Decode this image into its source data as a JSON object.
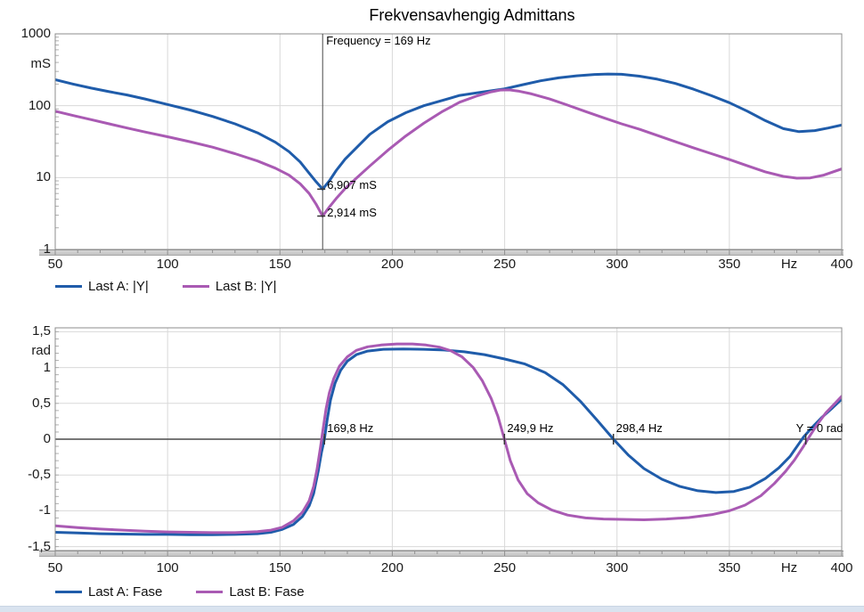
{
  "title": "Frekvensavhengig Admittans",
  "colors": {
    "last_a": "#1f5caa",
    "last_b": "#a95ab3",
    "grid": "#d9d9d9",
    "frame": "#8c8c8c",
    "zero_line": "#4a4a4a",
    "cursor_line": "#4a4a4a",
    "tick": "#8f8f8f"
  },
  "chart_data": [
    {
      "type": "line",
      "name": "admittance-magnitude",
      "x_unit": "Hz",
      "xlim": [
        50,
        400
      ],
      "x_ticks": [
        "50",
        "100",
        "150",
        "200",
        "250",
        "300",
        "350",
        "400"
      ],
      "y_unit": "mS",
      "y_scale": "log",
      "ylim": [
        1,
        1000
      ],
      "y_ticks": [
        "1000",
        "100",
        "10",
        "1"
      ],
      "grid": "on",
      "legend_position": "bottom-left",
      "series": [
        {
          "name": "Last A: |Y|",
          "color": "#1f5caa",
          "points": [
            [
              50,
              230
            ],
            [
              58,
              200
            ],
            [
              66,
              176
            ],
            [
              74,
              157
            ],
            [
              82,
              141
            ],
            [
              90,
              124
            ],
            [
              100,
              104
            ],
            [
              110,
              87
            ],
            [
              120,
              71
            ],
            [
              130,
              56
            ],
            [
              140,
              42
            ],
            [
              148,
              31
            ],
            [
              154,
              23
            ],
            [
              159,
              16.5
            ],
            [
              163,
              11.5
            ],
            [
              166,
              8.8
            ],
            [
              169,
              6.907
            ],
            [
              172,
              9
            ],
            [
              175,
              12.5
            ],
            [
              179,
              18
            ],
            [
              184,
              26
            ],
            [
              190,
              40
            ],
            [
              198,
              60
            ],
            [
              206,
              80
            ],
            [
              214,
              100
            ],
            [
              222,
              118
            ],
            [
              230,
              139
            ],
            [
              240,
              155
            ],
            [
              250,
              172
            ],
            [
              258,
              196
            ],
            [
              266,
              222
            ],
            [
              274,
              244
            ],
            [
              282,
              261
            ],
            [
              290,
              272
            ],
            [
              296,
              276
            ],
            [
              302,
              274
            ],
            [
              310,
              258
            ],
            [
              318,
              234
            ],
            [
              326,
              204
            ],
            [
              334,
              170
            ],
            [
              342,
              138
            ],
            [
              350,
              110
            ],
            [
              358,
              84
            ],
            [
              366,
              62
            ],
            [
              374,
              48
            ],
            [
              381,
              43.5
            ],
            [
              388,
              45
            ],
            [
              394,
              49
            ],
            [
              400,
              54
            ]
          ]
        },
        {
          "name": "Last B: |Y|",
          "color": "#a95ab3",
          "points": [
            [
              50,
              84
            ],
            [
              58,
              73
            ],
            [
              66,
              64
            ],
            [
              74,
              56
            ],
            [
              82,
              49
            ],
            [
              90,
              43
            ],
            [
              100,
              37
            ],
            [
              110,
              31.5
            ],
            [
              120,
              26.5
            ],
            [
              130,
              21.5
            ],
            [
              140,
              17
            ],
            [
              148,
              13.5
            ],
            [
              154,
              10.8
            ],
            [
              159,
              8.2
            ],
            [
              163,
              6
            ],
            [
              166,
              4.3
            ],
            [
              169,
              2.914
            ],
            [
              172,
              3.9
            ],
            [
              175,
              5.1
            ],
            [
              179,
              7
            ],
            [
              184,
              9.8
            ],
            [
              190,
              14.5
            ],
            [
              198,
              24
            ],
            [
              206,
              38
            ],
            [
              214,
              57
            ],
            [
              222,
              82
            ],
            [
              230,
              112
            ],
            [
              238,
              138
            ],
            [
              244,
              156
            ],
            [
              248,
              165
            ],
            [
              252,
              166
            ],
            [
              256,
              160
            ],
            [
              262,
              146
            ],
            [
              270,
              124
            ],
            [
              278,
              102
            ],
            [
              286,
              83
            ],
            [
              294,
              68
            ],
            [
              302,
              56
            ],
            [
              310,
              47
            ],
            [
              318,
              38.5
            ],
            [
              326,
              31.5
            ],
            [
              334,
              26
            ],
            [
              342,
              21.5
            ],
            [
              350,
              17.8
            ],
            [
              358,
              14.6
            ],
            [
              366,
              12
            ],
            [
              374,
              10.4
            ],
            [
              380,
              9.8
            ],
            [
              386,
              9.9
            ],
            [
              392,
              10.8
            ],
            [
              400,
              13.2
            ]
          ]
        }
      ],
      "cursor": {
        "frequency_hz": 169,
        "label": "Frequency = 169 Hz",
        "markers": [
          {
            "value_ms": 6.907,
            "label": "6,907 mS"
          },
          {
            "value_ms": 2.914,
            "label": "2,914 mS"
          }
        ]
      }
    },
    {
      "type": "line",
      "name": "admittance-phase",
      "x_unit": "Hz",
      "xlim": [
        50,
        400
      ],
      "x_ticks": [
        "50",
        "100",
        "150",
        "200",
        "250",
        "300",
        "350",
        "400"
      ],
      "y_unit": "rad",
      "ylim": [
        -1.5,
        1.5
      ],
      "y_ticks": [
        "1,5",
        "1",
        "0,5",
        "0",
        "-0,5",
        "-1",
        "-1,5"
      ],
      "grid": "on",
      "legend_position": "bottom-left",
      "series": [
        {
          "name": "Last A: Fase",
          "color": "#1f5caa",
          "points": [
            [
              50,
              -1.3
            ],
            [
              60,
              -1.31
            ],
            [
              70,
              -1.32
            ],
            [
              80,
              -1.325
            ],
            [
              90,
              -1.33
            ],
            [
              100,
              -1.33
            ],
            [
              110,
              -1.335
            ],
            [
              120,
              -1.335
            ],
            [
              130,
              -1.33
            ],
            [
              140,
              -1.32
            ],
            [
              146,
              -1.3
            ],
            [
              151,
              -1.26
            ],
            [
              156,
              -1.19
            ],
            [
              160,
              -1.08
            ],
            [
              163,
              -0.93
            ],
            [
              165,
              -0.76
            ],
            [
              167,
              -0.45
            ],
            [
              168.5,
              -0.18
            ],
            [
              169.8,
              0
            ],
            [
              171,
              0.27
            ],
            [
              172.5,
              0.55
            ],
            [
              174.5,
              0.78
            ],
            [
              177,
              0.96
            ],
            [
              180,
              1.09
            ],
            [
              184,
              1.18
            ],
            [
              189,
              1.23
            ],
            [
              196,
              1.255
            ],
            [
              205,
              1.26
            ],
            [
              214,
              1.255
            ],
            [
              223,
              1.245
            ],
            [
              232,
              1.22
            ],
            [
              241,
              1.18
            ],
            [
              250,
              1.12
            ],
            [
              259,
              1.05
            ],
            [
              268,
              0.93
            ],
            [
              276,
              0.76
            ],
            [
              284,
              0.52
            ],
            [
              291,
              0.27
            ],
            [
              298.4,
              0
            ],
            [
              305,
              -0.22
            ],
            [
              312,
              -0.41
            ],
            [
              320,
              -0.56
            ],
            [
              328,
              -0.66
            ],
            [
              336,
              -0.72
            ],
            [
              344,
              -0.745
            ],
            [
              352,
              -0.73
            ],
            [
              359,
              -0.67
            ],
            [
              366,
              -0.55
            ],
            [
              372,
              -0.4
            ],
            [
              377,
              -0.24
            ],
            [
              381,
              -0.06
            ],
            [
              383,
              0.03
            ],
            [
              387,
              0.17
            ],
            [
              391,
              0.3
            ],
            [
              396,
              0.44
            ],
            [
              400,
              0.56
            ]
          ]
        },
        {
          "name": "Last B: Fase",
          "color": "#a95ab3",
          "points": [
            [
              50,
              -1.21
            ],
            [
              60,
              -1.235
            ],
            [
              70,
              -1.255
            ],
            [
              80,
              -1.27
            ],
            [
              90,
              -1.285
            ],
            [
              100,
              -1.295
            ],
            [
              110,
              -1.3
            ],
            [
              120,
              -1.305
            ],
            [
              130,
              -1.305
            ],
            [
              140,
              -1.29
            ],
            [
              146,
              -1.27
            ],
            [
              151,
              -1.23
            ],
            [
              156,
              -1.14
            ],
            [
              160,
              -1.02
            ],
            [
              163,
              -0.86
            ],
            [
              165,
              -0.66
            ],
            [
              166.5,
              -0.42
            ],
            [
              168,
              -0.12
            ],
            [
              169,
              0.1
            ],
            [
              170.5,
              0.42
            ],
            [
              172,
              0.65
            ],
            [
              174,
              0.85
            ],
            [
              176.5,
              1.02
            ],
            [
              180,
              1.15
            ],
            [
              184,
              1.24
            ],
            [
              189,
              1.29
            ],
            [
              195,
              1.315
            ],
            [
              202,
              1.33
            ],
            [
              209,
              1.33
            ],
            [
              215,
              1.315
            ],
            [
              221,
              1.285
            ],
            [
              226,
              1.235
            ],
            [
              231,
              1.15
            ],
            [
              236,
              1.0
            ],
            [
              240,
              0.82
            ],
            [
              244,
              0.57
            ],
            [
              247,
              0.32
            ],
            [
              249.9,
              0
            ],
            [
              252.5,
              -0.3
            ],
            [
              256,
              -0.57
            ],
            [
              260,
              -0.76
            ],
            [
              265,
              -0.89
            ],
            [
              271,
              -0.99
            ],
            [
              278,
              -1.06
            ],
            [
              286,
              -1.1
            ],
            [
              294,
              -1.115
            ],
            [
              302,
              -1.12
            ],
            [
              312,
              -1.125
            ],
            [
              322,
              -1.115
            ],
            [
              332,
              -1.095
            ],
            [
              342,
              -1.055
            ],
            [
              350,
              -1.0
            ],
            [
              357,
              -0.92
            ],
            [
              364,
              -0.79
            ],
            [
              370,
              -0.62
            ],
            [
              375,
              -0.45
            ],
            [
              379,
              -0.29
            ],
            [
              383,
              -0.1
            ],
            [
              385.5,
              0.03
            ],
            [
              389,
              0.2
            ],
            [
              393,
              0.37
            ],
            [
              397,
              0.5
            ],
            [
              400,
              0.6
            ]
          ]
        }
      ],
      "zero_crossings": [
        {
          "frequency_hz": 169.8,
          "label": "169,8 Hz"
        },
        {
          "frequency_hz": 249.9,
          "label": "249,9 Hz"
        },
        {
          "frequency_hz": 298.4,
          "label": "298,4 Hz"
        },
        {
          "frequency_hz": 384,
          "label": "Y = 0 rad"
        }
      ]
    }
  ]
}
